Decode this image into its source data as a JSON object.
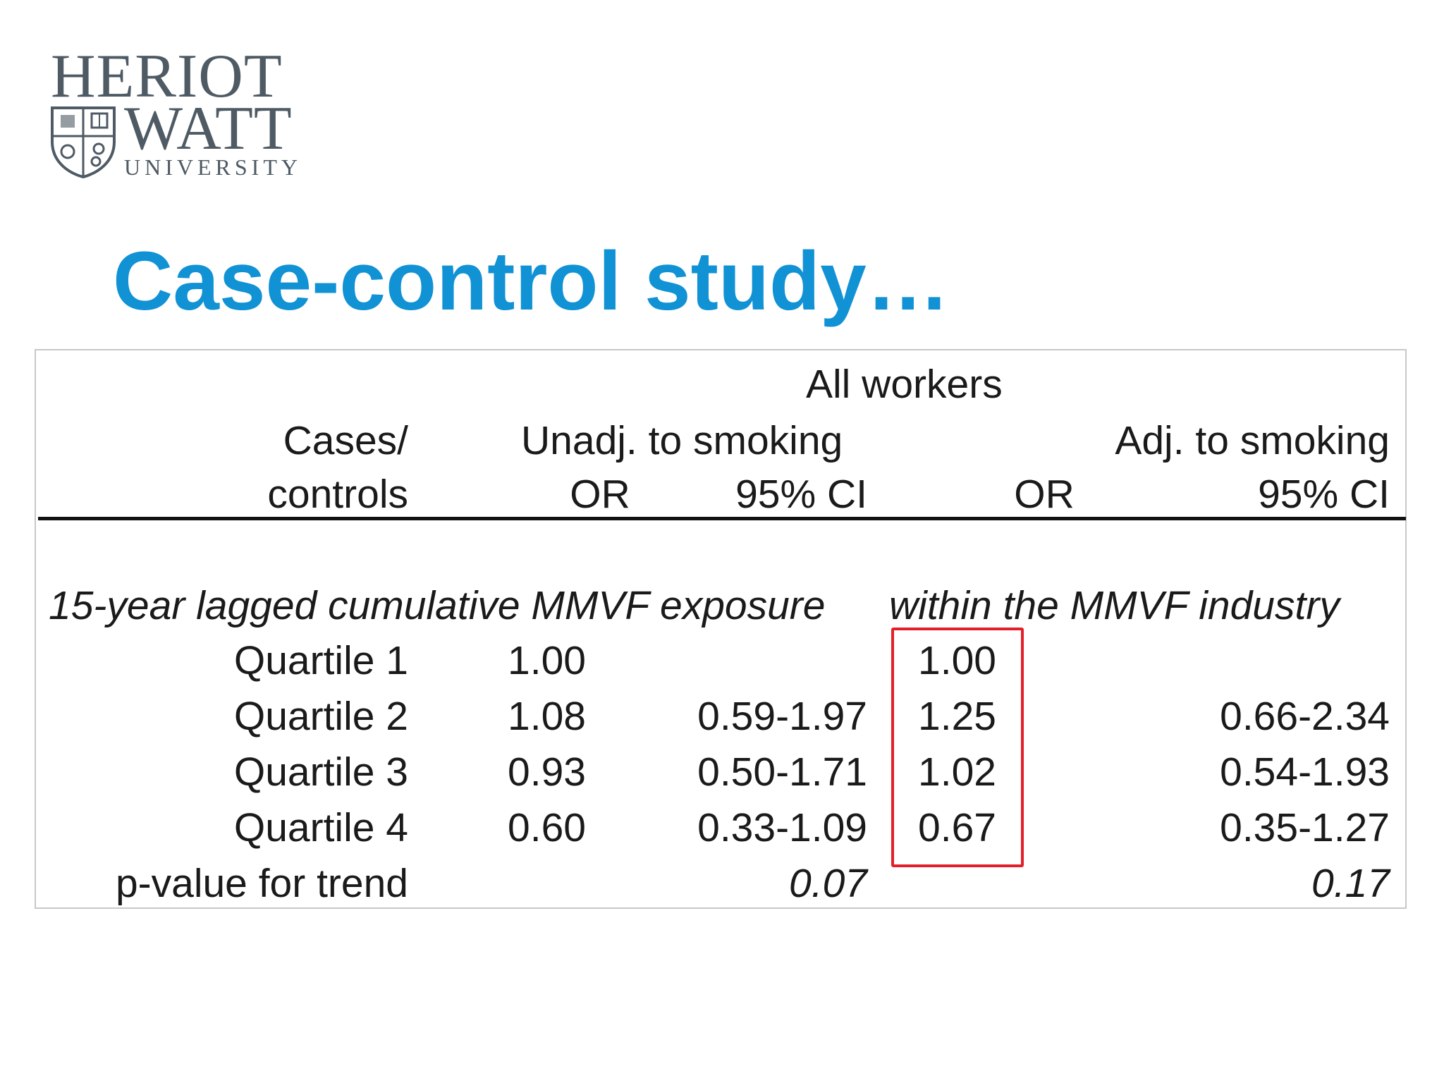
{
  "logo": {
    "line1": "HERIOT",
    "line2": "WATT",
    "line3": "UNIVERSITY",
    "icon": "university-crest-icon",
    "color": "#4e5a64"
  },
  "title": "Case-control study…",
  "title_color": "#1192d4",
  "table": {
    "group_header": "All workers",
    "header_row1": {
      "cases": "Cases/",
      "unadj": "Unadj. to smoking",
      "adj": "Adj. to smoking"
    },
    "header_row2": {
      "cases": "controls",
      "or1": "OR",
      "ci1": "95% CI",
      "or2": "OR",
      "ci2": "95% CI"
    },
    "section_label_left": "15-year lagged cumulative MMVF exposure",
    "section_label_right": "within the MMVF industry",
    "rows": [
      {
        "label": "Quartile 1",
        "or1": "1.00",
        "ci1": "",
        "or2": "1.00",
        "ci2": ""
      },
      {
        "label": "Quartile 2",
        "or1": "1.08",
        "ci1": "0.59-1.97",
        "or2": "1.25",
        "ci2": "0.66-2.34"
      },
      {
        "label": "Quartile 3",
        "or1": "0.93",
        "ci1": "0.50-1.71",
        "or2": "1.02",
        "ci2": "0.54-1.93"
      },
      {
        "label": "Quartile 4",
        "or1": "0.60",
        "ci1": "0.33-1.09",
        "or2": "0.67",
        "ci2": "0.35-1.27"
      }
    ],
    "trend": {
      "label": "p-value for trend",
      "p1": "0.07",
      "p2": "0.17"
    },
    "highlight_color": "#e3202a"
  }
}
